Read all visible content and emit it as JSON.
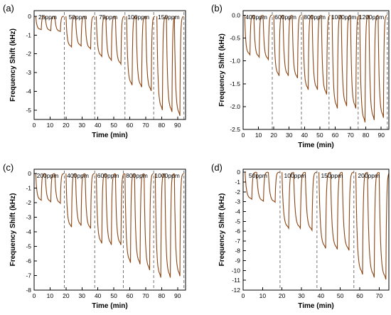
{
  "colors": {
    "trace": "#8b4513",
    "separator": "#555555",
    "axis": "#000000"
  },
  "chart_data": [
    {
      "panel": "(a)",
      "type": "line",
      "xlabel": "Time (min)",
      "ylabel": "Frequency Shift (kHz)",
      "xlim": [
        0,
        95
      ],
      "ylim": [
        -5.5,
        0.3
      ],
      "xticks": [
        0,
        10,
        20,
        30,
        40,
        50,
        60,
        70,
        80,
        90
      ],
      "yticks": [
        0,
        -1,
        -2,
        -3,
        -4,
        -5
      ],
      "separators": [
        19,
        38,
        57,
        75,
        94
      ],
      "groups": [
        {
          "label": "25ppm",
          "cycles": [
            {
              "start": 1,
              "min": -0.7
            },
            {
              "start": 7,
              "min": -0.75
            },
            {
              "start": 13,
              "min": -0.8
            }
          ]
        },
        {
          "label": "50ppm",
          "cycles": [
            {
              "start": 20,
              "min": -1.6
            },
            {
              "start": 26,
              "min": -1.55
            },
            {
              "start": 32,
              "min": -1.7
            }
          ]
        },
        {
          "label": "75ppm",
          "cycles": [
            {
              "start": 39,
              "min": -2.1
            },
            {
              "start": 45,
              "min": -2.3
            },
            {
              "start": 51,
              "min": -2.5
            }
          ]
        },
        {
          "label": "100ppm",
          "cycles": [
            {
              "start": 58,
              "min": -3.6
            },
            {
              "start": 64,
              "min": -3.7
            },
            {
              "start": 70,
              "min": -3.9
            }
          ]
        },
        {
          "label": "150ppm",
          "cycles": [
            {
              "start": 77,
              "min": -4.9
            },
            {
              "start": 83,
              "min": -5.0
            },
            {
              "start": 88,
              "min": -5.2
            }
          ]
        }
      ]
    },
    {
      "panel": "(b)",
      "type": "line",
      "xlabel": "Time (min)",
      "ylabel": "Frequency Shift (kHz)",
      "xlim": [
        0,
        95
      ],
      "ylim": [
        -2.5,
        0.1
      ],
      "xticks": [
        0,
        10,
        20,
        30,
        40,
        50,
        60,
        70,
        80,
        90
      ],
      "yticks": [
        0.0,
        -0.5,
        -1.0,
        -1.5,
        -2.0,
        -2.5
      ],
      "ytick_labels": [
        "0.0",
        "-0.5",
        "-1.0",
        "-1.5",
        "-2.0",
        "-2.5"
      ],
      "separators": [
        19,
        38,
        56,
        75,
        94
      ],
      "groups": [
        {
          "label": "400ppm",
          "cycles": [
            {
              "start": 1,
              "min": -0.85
            },
            {
              "start": 7,
              "min": -0.9
            },
            {
              "start": 13,
              "min": -0.95
            }
          ]
        },
        {
          "label": "600ppm",
          "cycles": [
            {
              "start": 20,
              "min": -1.3
            },
            {
              "start": 26,
              "min": -1.3
            },
            {
              "start": 32,
              "min": -1.35
            }
          ]
        },
        {
          "label": "800ppm",
          "cycles": [
            {
              "start": 39,
              "min": -1.6
            },
            {
              "start": 45,
              "min": -1.6
            },
            {
              "start": 51,
              "min": -1.7
            }
          ]
        },
        {
          "label": "1000ppm",
          "cycles": [
            {
              "start": 58,
              "min": -2.0
            },
            {
              "start": 64,
              "min": -1.95
            },
            {
              "start": 70,
              "min": -2.0
            }
          ]
        },
        {
          "label": "1200ppm",
          "cycles": [
            {
              "start": 76,
              "min": -2.3
            },
            {
              "start": 82,
              "min": -2.25
            },
            {
              "start": 88,
              "min": -2.2
            }
          ]
        }
      ]
    },
    {
      "panel": "(c)",
      "type": "line",
      "xlabel": "Time (min)",
      "ylabel": "Frequency Shift (kHz)",
      "xlim": [
        0,
        95
      ],
      "ylim": [
        -8,
        0.3
      ],
      "xticks": [
        0,
        10,
        20,
        30,
        40,
        50,
        60,
        70,
        80,
        90
      ],
      "yticks": [
        0,
        -1,
        -2,
        -3,
        -4,
        -5,
        -6,
        -7,
        -8
      ],
      "separators": [
        19,
        38,
        56,
        75,
        94
      ],
      "groups": [
        {
          "label": "200ppm",
          "cycles": [
            {
              "start": 1,
              "min": -1.8
            },
            {
              "start": 7,
              "min": -1.9
            },
            {
              "start": 13,
              "min": -2.0
            }
          ]
        },
        {
          "label": "400ppm",
          "cycles": [
            {
              "start": 20,
              "min": -3.6
            },
            {
              "start": 26,
              "min": -3.5
            },
            {
              "start": 32,
              "min": -3.7
            }
          ]
        },
        {
          "label": "600ppm",
          "cycles": [
            {
              "start": 39,
              "min": -4.7
            },
            {
              "start": 45,
              "min": -4.8
            },
            {
              "start": 51,
              "min": -4.8
            }
          ]
        },
        {
          "label": "800ppm",
          "cycles": [
            {
              "start": 57,
              "min": -6.0
            },
            {
              "start": 63,
              "min": -6.1
            },
            {
              "start": 69,
              "min": -6.5
            }
          ]
        },
        {
          "label": "1000ppm",
          "cycles": [
            {
              "start": 76,
              "min": -7.0
            },
            {
              "start": 82,
              "min": -7.0
            },
            {
              "start": 88,
              "min": -6.9
            }
          ]
        }
      ]
    },
    {
      "panel": "(d)",
      "type": "line",
      "xlabel": "Time (min)",
      "ylabel": "Frequency Shift (kHz)",
      "xlim": [
        0,
        75
      ],
      "ylim": [
        -12,
        0.3
      ],
      "xticks": [
        0,
        10,
        20,
        30,
        40,
        50,
        60,
        70
      ],
      "yticks": [
        0,
        -1,
        -2,
        -3,
        -4,
        -5,
        -6,
        -7,
        -8,
        -9,
        -10,
        -11,
        -12
      ],
      "separators": [
        19,
        38,
        57
      ],
      "groups": [
        {
          "label": "50ppm",
          "cycles": [
            {
              "start": 1,
              "min": -2.7
            },
            {
              "start": 7,
              "min": -2.9
            },
            {
              "start": 13,
              "min": -3.0
            }
          ]
        },
        {
          "label": "100ppm",
          "cycles": [
            {
              "start": 20,
              "min": -5.6
            },
            {
              "start": 26,
              "min": -5.6
            },
            {
              "start": 32,
              "min": -5.8
            }
          ]
        },
        {
          "label": "150ppm",
          "cycles": [
            {
              "start": 39,
              "min": -7.6
            },
            {
              "start": 45,
              "min": -7.7
            },
            {
              "start": 51,
              "min": -7.8
            }
          ]
        },
        {
          "label": "200ppm",
          "cycles": [
            {
              "start": 58,
              "min": -10.2
            },
            {
              "start": 64,
              "min": -10.5
            },
            {
              "start": 70,
              "min": -10.7
            }
          ]
        }
      ]
    }
  ]
}
